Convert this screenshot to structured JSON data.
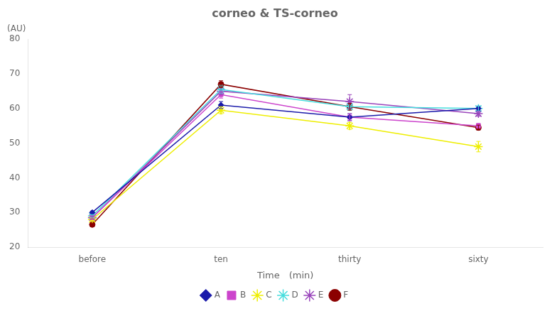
{
  "chart_data": {
    "type": "line",
    "title": "corneo & TS-corneo",
    "x_label": "Time　(min)",
    "annotations": [
      "(AU)"
    ],
    "categories": [
      "before",
      "ten",
      "thirty",
      "sixty"
    ],
    "series": [
      {
        "name": "A",
        "color": "#1a1aaa",
        "marker": "diamond",
        "line_style": "solid",
        "values": [
          30.0,
          61.0,
          57.5,
          60.0
        ],
        "errors": [
          0.4,
          1.0,
          1.0,
          0.7
        ]
      },
      {
        "name": "B",
        "color": "#cc44cc",
        "marker": "square",
        "line_style": "solid",
        "values": [
          28.5,
          64.0,
          57.5,
          55.0
        ],
        "errors": [
          0.4,
          1.0,
          1.0,
          0.7
        ]
      },
      {
        "name": "C",
        "color": "#eeee00",
        "marker": "star",
        "line_style": "solid",
        "values": [
          28.0,
          59.5,
          55.0,
          49.0
        ],
        "errors": [
          0.4,
          1.0,
          1.0,
          1.5
        ]
      },
      {
        "name": "D",
        "color": "#44dddd",
        "marker": "star",
        "line_style": "solid",
        "values": [
          29.0,
          65.5,
          60.5,
          60.0
        ],
        "errors": [
          0.4,
          1.2,
          1.0,
          0.7
        ]
      },
      {
        "name": "E",
        "color": "#9944bb",
        "marker": "star",
        "line_style": "solid",
        "values": [
          28.5,
          65.0,
          62.0,
          58.5
        ],
        "errors": [
          0.4,
          1.0,
          2.0,
          0.7
        ]
      },
      {
        "name": "F",
        "color": "#8b0000",
        "marker": "circle",
        "line_style": "solid",
        "values": [
          26.5,
          67.0,
          60.5,
          54.5
        ],
        "errors": [
          0.4,
          1.0,
          1.0,
          0.7
        ]
      }
    ],
    "ylim": [
      20,
      80
    ],
    "yticks": [
      20,
      30,
      40,
      50,
      60,
      70,
      80
    ],
    "grid": false,
    "legend": "bottom"
  }
}
